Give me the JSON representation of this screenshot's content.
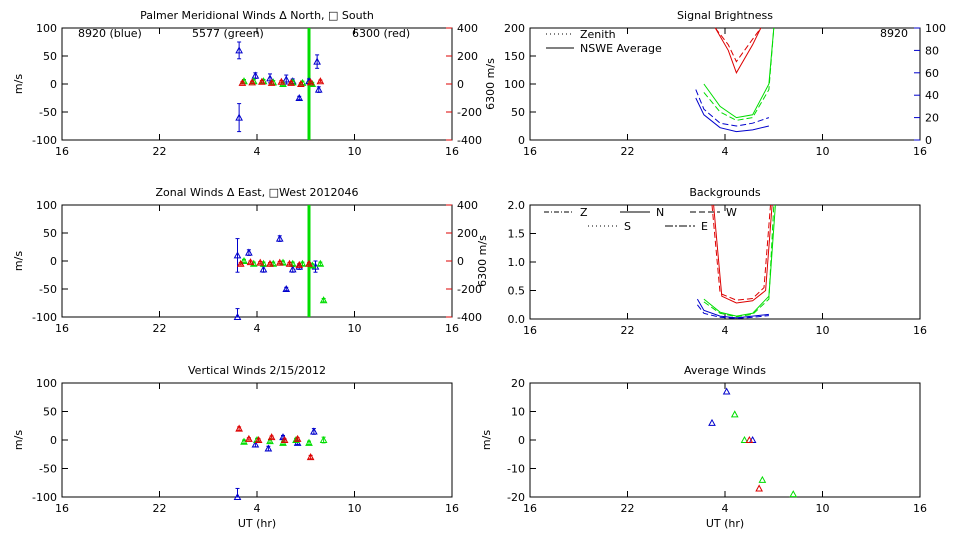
{
  "colors": {
    "blue": "#0000cc",
    "green": "#00dd00",
    "red": "#dd0000",
    "black": "#000000"
  },
  "xaxis": {
    "tick_labels": [
      "16",
      "22",
      "4",
      "10",
      "16"
    ],
    "range": [
      16,
      40
    ]
  },
  "chart_data": [
    {
      "id": "meridional",
      "type": "scatter",
      "title": "Palmer Meridional Winds Δ North, □ South",
      "ylabel": "m/s",
      "ylim": [
        -100,
        100
      ],
      "yticks": [
        "100",
        "50",
        "0",
        "-50",
        "-100"
      ],
      "right_axis": {
        "label": "6300 m/s",
        "ticks": [
          "400",
          "200",
          "0",
          "-200",
          "-400"
        ],
        "color": "#dd0000"
      },
      "annotations": [
        {
          "text": "8920 (blue)",
          "color": "#0000cc"
        },
        {
          "text": "5577 (green)",
          "color": "#00dd00"
        },
        {
          "text": "6300 (red)",
          "color": "#dd0000"
        }
      ],
      "vline": {
        "x": 31.2,
        "color": "#00dd00"
      },
      "series": [
        {
          "color": "#0000cc",
          "points": [
            [
              26.9,
              60,
              15
            ],
            [
              26.9,
              -60,
              25
            ],
            [
              27.9,
              15,
              5
            ],
            [
              28.8,
              10,
              8
            ],
            [
              29.8,
              8,
              8
            ],
            [
              30.6,
              -25,
              3
            ],
            [
              30.2,
              5,
              4
            ],
            [
              31.2,
              5,
              4
            ],
            [
              31.7,
              40,
              12
            ],
            [
              31.8,
              -10,
              5
            ]
          ]
        },
        {
          "color": "#00dd00",
          "points": [
            [
              27.2,
              5,
              3
            ],
            [
              27.8,
              5,
              3
            ],
            [
              28.4,
              5,
              3
            ],
            [
              29.0,
              3,
              3
            ],
            [
              29.6,
              0,
              3
            ],
            [
              30.2,
              3,
              3
            ],
            [
              30.8,
              2,
              3
            ],
            [
              31.4,
              0,
              3
            ]
          ]
        },
        {
          "color": "#dd0000",
          "points": [
            [
              27.1,
              2,
              2
            ],
            [
              27.7,
              3,
              2
            ],
            [
              28.3,
              4,
              2
            ],
            [
              28.9,
              2,
              2
            ],
            [
              29.5,
              4,
              2
            ],
            [
              30.1,
              2,
              2
            ],
            [
              30.7,
              0,
              2
            ],
            [
              31.3,
              3,
              2
            ],
            [
              31.9,
              5,
              2
            ]
          ]
        }
      ]
    },
    {
      "id": "zonal",
      "type": "scatter",
      "title": "Zonal Winds Δ East, □West 2012046",
      "ylabel": "m/s",
      "ylim": [
        -100,
        100
      ],
      "yticks": [
        "100",
        "50",
        "0",
        "-50",
        "-100"
      ],
      "right_axis": {
        "label": "6300 m/s",
        "ticks": [
          "400",
          "200",
          "0",
          "-200",
          "-400"
        ],
        "color": "#dd0000"
      },
      "vline": {
        "x": 31.2,
        "color": "#00dd00"
      },
      "series": [
        {
          "color": "#0000cc",
          "points": [
            [
              26.8,
              10,
              30
            ],
            [
              27.5,
              15,
              5
            ],
            [
              28.4,
              -15,
              5
            ],
            [
              29.4,
              40,
              5
            ],
            [
              29.8,
              -50,
              3
            ],
            [
              30.2,
              -15,
              5
            ],
            [
              30.6,
              -10,
              5
            ],
            [
              31.6,
              -10,
              10
            ],
            [
              26.8,
              -100,
              15
            ]
          ]
        },
        {
          "color": "#00dd00",
          "points": [
            [
              27.2,
              0,
              3
            ],
            [
              27.8,
              -5,
              3
            ],
            [
              28.4,
              -5,
              3
            ],
            [
              29.0,
              -5,
              3
            ],
            [
              29.6,
              -3,
              3
            ],
            [
              30.2,
              -5,
              3
            ],
            [
              30.8,
              -5,
              3
            ],
            [
              31.4,
              -8,
              3
            ],
            [
              31.9,
              -5,
              3
            ],
            [
              32.1,
              -70,
              3
            ]
          ]
        },
        {
          "color": "#dd0000",
          "points": [
            [
              27.0,
              -5,
              2
            ],
            [
              27.6,
              -2,
              2
            ],
            [
              28.2,
              -3,
              2
            ],
            [
              28.8,
              -5,
              2
            ],
            [
              29.4,
              -3,
              2
            ],
            [
              30.0,
              -5,
              2
            ],
            [
              30.6,
              -7,
              2
            ],
            [
              31.2,
              -5,
              2
            ]
          ]
        }
      ]
    },
    {
      "id": "vertical",
      "type": "scatter",
      "title": "Vertical Winds 2/15/2012",
      "ylabel": "m/s",
      "xlabel": "UT (hr)",
      "ylim": [
        -100,
        100
      ],
      "yticks": [
        "100",
        "50",
        "0",
        "-50",
        "-100"
      ],
      "series": [
        {
          "color": "#0000cc",
          "points": [
            [
              27.9,
              -8,
              4
            ],
            [
              28.7,
              -15,
              4
            ],
            [
              29.6,
              5,
              3
            ],
            [
              30.5,
              -5,
              3
            ],
            [
              31.5,
              15,
              5
            ],
            [
              26.8,
              -100,
              15
            ]
          ]
        },
        {
          "color": "#00dd00",
          "points": [
            [
              27.2,
              -3,
              3
            ],
            [
              28.0,
              0,
              3
            ],
            [
              28.8,
              -2,
              3
            ],
            [
              29.6,
              -5,
              3
            ],
            [
              30.4,
              0,
              3
            ],
            [
              31.2,
              -5,
              3
            ],
            [
              32.1,
              0,
              5
            ]
          ]
        },
        {
          "color": "#dd0000",
          "points": [
            [
              26.9,
              20,
              3
            ],
            [
              27.5,
              2,
              2
            ],
            [
              28.1,
              0,
              2
            ],
            [
              28.9,
              5,
              2
            ],
            [
              29.7,
              0,
              2
            ],
            [
              30.5,
              2,
              2
            ],
            [
              31.3,
              -30,
              3
            ]
          ]
        }
      ]
    },
    {
      "id": "brightness",
      "type": "line",
      "title": "Signal Brightness",
      "ylim": [
        0,
        200
      ],
      "yticks": [
        "200",
        "150",
        "100",
        "50",
        "0"
      ],
      "right_axis": {
        "label": "",
        "ticks": [
          "100",
          "80",
          "60",
          "40",
          "20",
          "0"
        ],
        "color": "#0000cc"
      },
      "annotations": [
        {
          "text": "8920",
          "color": "#0000cc"
        }
      ],
      "legend": [
        {
          "label": "Zenith",
          "dash": "1,3"
        },
        {
          "label": "NSWE Average",
          "dash": ""
        }
      ],
      "series": [
        {
          "color": "#0000cc",
          "points": [
            [
              26.2,
              75
            ],
            [
              26.7,
              45
            ],
            [
              27.7,
              22
            ],
            [
              28.7,
              15
            ],
            [
              29.7,
              18
            ],
            [
              30.7,
              25
            ]
          ]
        },
        {
          "color": "#0000cc",
          "dash": "6,3",
          "points": [
            [
              26.2,
              90
            ],
            [
              26.7,
              55
            ],
            [
              27.7,
              30
            ],
            [
              28.7,
              25
            ],
            [
              29.7,
              30
            ],
            [
              30.7,
              40
            ]
          ]
        },
        {
          "color": "#00dd00",
          "points": [
            [
              26.7,
              100
            ],
            [
              27.7,
              60
            ],
            [
              28.7,
              40
            ],
            [
              29.7,
              45
            ],
            [
              30.7,
              100
            ],
            [
              31.0,
              200
            ]
          ]
        },
        {
          "color": "#00dd00",
          "dash": "6,3",
          "points": [
            [
              26.7,
              85
            ],
            [
              27.7,
              50
            ],
            [
              28.7,
              35
            ],
            [
              29.7,
              40
            ],
            [
              30.7,
              90
            ],
            [
              31.0,
              200
            ]
          ]
        },
        {
          "color": "#dd0000",
          "points": [
            [
              27.4,
              200
            ],
            [
              28.2,
              160
            ],
            [
              28.7,
              120
            ],
            [
              29.7,
              170
            ],
            [
              30.2,
              200
            ]
          ]
        },
        {
          "color": "#dd0000",
          "dash": "6,3",
          "points": [
            [
              27.4,
              200
            ],
            [
              28.2,
              170
            ],
            [
              28.7,
              140
            ],
            [
              29.7,
              180
            ],
            [
              30.2,
              200
            ]
          ]
        }
      ]
    },
    {
      "id": "backgrounds",
      "type": "line",
      "title": "Backgrounds",
      "ylim": [
        0,
        2
      ],
      "yticks": [
        "2.0",
        "1.5",
        "1.0",
        "0.5",
        "0.0"
      ],
      "legend": [
        {
          "label": "Z",
          "dash": "5,2,1,2"
        },
        {
          "label": "N",
          "dash": ""
        },
        {
          "label": "W",
          "dash": "6,3"
        },
        {
          "label": "S",
          "dash": "1,3"
        },
        {
          "label": "E",
          "dash": "8,2,2,2"
        }
      ],
      "series": [
        {
          "color": "#dd0000",
          "points": [
            [
              27.3,
              2.0
            ],
            [
              27.8,
              0.4
            ],
            [
              28.7,
              0.28
            ],
            [
              29.7,
              0.32
            ],
            [
              30.5,
              0.5
            ],
            [
              30.9,
              2.0
            ]
          ]
        },
        {
          "color": "#dd0000",
          "dash": "6,3",
          "points": [
            [
              27.2,
              2.0
            ],
            [
              27.7,
              0.45
            ],
            [
              28.7,
              0.33
            ],
            [
              29.7,
              0.36
            ],
            [
              30.4,
              0.55
            ],
            [
              30.8,
              2.0
            ]
          ]
        },
        {
          "color": "#00dd00",
          "points": [
            [
              26.7,
              0.35
            ],
            [
              27.7,
              0.12
            ],
            [
              28.7,
              0.05
            ],
            [
              29.7,
              0.1
            ],
            [
              30.7,
              0.4
            ],
            [
              31.1,
              2.0
            ]
          ]
        },
        {
          "color": "#00dd00",
          "dash": "6,3",
          "points": [
            [
              26.7,
              0.3
            ],
            [
              27.7,
              0.1
            ],
            [
              28.7,
              0.04
            ],
            [
              29.7,
              0.08
            ],
            [
              30.7,
              0.35
            ],
            [
              31.0,
              2.0
            ]
          ]
        },
        {
          "color": "#0000cc",
          "points": [
            [
              26.3,
              0.35
            ],
            [
              26.7,
              0.15
            ],
            [
              27.7,
              0.05
            ],
            [
              28.7,
              0.02
            ],
            [
              29.7,
              0.05
            ],
            [
              30.7,
              0.08
            ]
          ]
        },
        {
          "color": "#0000cc",
          "dash": "6,3",
          "points": [
            [
              26.3,
              0.25
            ],
            [
              26.7,
              0.1
            ],
            [
              27.7,
              0.03
            ],
            [
              28.7,
              0.01
            ],
            [
              29.7,
              0.03
            ],
            [
              30.7,
              0.06
            ]
          ]
        }
      ]
    },
    {
      "id": "average",
      "type": "scatter",
      "title": "Average Winds",
      "ylabel": "m/s",
      "xlabel": "UT (hr)",
      "ylim": [
        -20,
        20
      ],
      "yticks": [
        "20",
        "10",
        "0",
        "-10",
        "-20"
      ],
      "series": [
        {
          "color": "#0000cc",
          "points": [
            [
              27.2,
              6,
              0
            ],
            [
              28.1,
              17,
              0
            ],
            [
              29.7,
              0,
              0
            ]
          ]
        },
        {
          "color": "#00dd00",
          "points": [
            [
              28.6,
              9,
              0
            ],
            [
              29.2,
              0,
              0
            ],
            [
              30.3,
              -14,
              0
            ],
            [
              32.2,
              -19,
              0
            ]
          ]
        },
        {
          "color": "#dd0000",
          "points": [
            [
              29.5,
              0,
              0
            ],
            [
              30.1,
              -17,
              0
            ]
          ]
        }
      ]
    }
  ]
}
